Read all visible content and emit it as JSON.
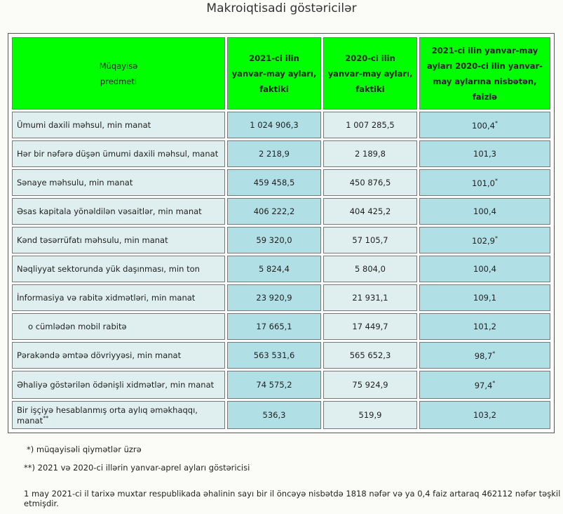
{
  "title": "Makroiqtisadi göstəricilər",
  "headers": [
    "Müqayisə\npredmeti",
    "2021-ci ilin\nyanvar-may ayları,\nfaktiki",
    "2020-ci ilin\nyanvar-may ayları,\nfaktiki",
    "2021-ci ilin yanvar-may ayları 2020-ci ilin yanvar-may aylarına nisbətən, faizlə"
  ],
  "rows": [
    {
      "label": "Ümumi daxili məhsul, min manat",
      "v2021": "1 024 906,3",
      "v2020": "1 007 285,5",
      "pct": "100,4",
      "mark": "*"
    },
    {
      "label": "Hər bir nəfərə düşən ümumi daxili məhsul, manat",
      "v2021": "2 218,9",
      "v2020": "2 189,8",
      "pct": "101,3",
      "mark": ""
    },
    {
      "label": "Sənaye məhsulu, min manat",
      "v2021": "459 458,5",
      "v2020": "450 876,5",
      "pct": "101,0",
      "mark": "*"
    },
    {
      "label": "Əsas kapitala yönəldilən vəsaitlər, min manat",
      "v2021": "406 222,2",
      "v2020": "404 425,2",
      "pct": "100,4",
      "mark": ""
    },
    {
      "label": "Kənd təsərrüfatı məhsulu, min manat",
      "v2021": "59 320,0",
      "v2020": "57 105,7",
      "pct": "102,9",
      "mark": "*"
    },
    {
      "label": "Nəqliyyat sektorunda yük daşınması, min ton",
      "v2021": "5 824,4",
      "v2020": "5 804,0",
      "pct": "100,4",
      "mark": ""
    },
    {
      "label": "İnformasiya və rabitə xidmətləri, min manat",
      "v2021": "23 920,9",
      "v2020": "21 931,1",
      "pct": "109,1",
      "mark": ""
    },
    {
      "label": "o cümlədən mobil rabitə",
      "v2021": "17 665,1",
      "v2020": "17 449,7",
      "pct": "101,2",
      "mark": "",
      "indent": true
    },
    {
      "label": "Pərakəndə əmtəə dövriyyəsi, min manat",
      "v2021": "563 531,6",
      "v2020": "565 652,3",
      "pct": "98,7",
      "mark": "*"
    },
    {
      "label": "Əhaliyə göstərilən ödənişli xidmətlər, min manat",
      "v2021": "74 575,2",
      "v2020": "75 924,9",
      "pct": "97,4",
      "mark": "*"
    },
    {
      "label": "Bir işçiyə hesablanmış orta aylıq əməkhaqqı, manat",
      "labelMark": "**",
      "v2021": "536,3",
      "v2020": "519,9",
      "pct": "103,2",
      "mark": ""
    }
  ],
  "notes": [
    "*) müqayisəli qiymətlər üzrə",
    "**) 2021 və 2020-ci illərin yanvar-aprel ayları göstəricisi"
  ],
  "summary": "1 may 2021-ci il tarixə muxtar respublikada əhalinin sayı bir il öncəyə nisbətdə 1818 nəfər və ya 0,4 faiz artaraq 462112 nəfər təşkil etmişdir.",
  "colors": {
    "header": "#00ff00",
    "light": "#dfeeee",
    "blue": "#b1dfe6"
  }
}
